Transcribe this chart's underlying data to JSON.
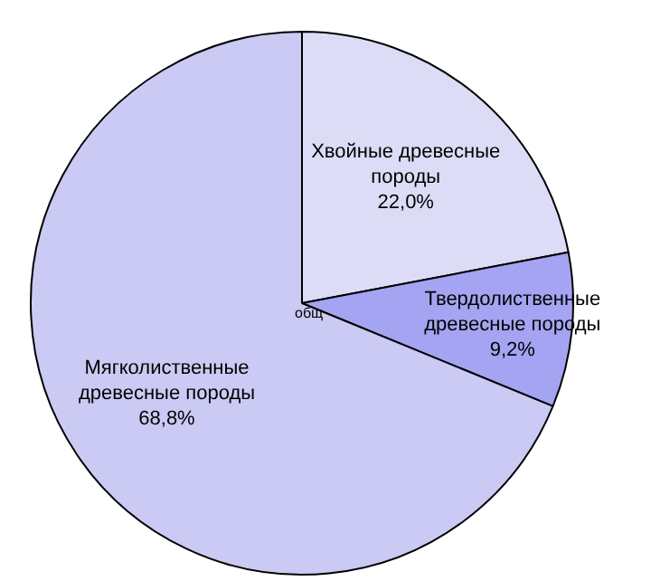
{
  "chart_data": {
    "type": "pie",
    "categories": [
      "Хвойные древесные породы",
      "Твердолиственные древесные породы",
      "Мягколиственные древесные породы"
    ],
    "values": [
      22.0,
      9.2,
      68.8
    ],
    "value_labels": [
      "22,0%",
      "9,2%",
      "68,8%"
    ],
    "colors": [
      "#dcdcf6",
      "#a4a4f2",
      "#cacaf4"
    ],
    "annotations": [
      "общ"
    ],
    "legend": false
  }
}
